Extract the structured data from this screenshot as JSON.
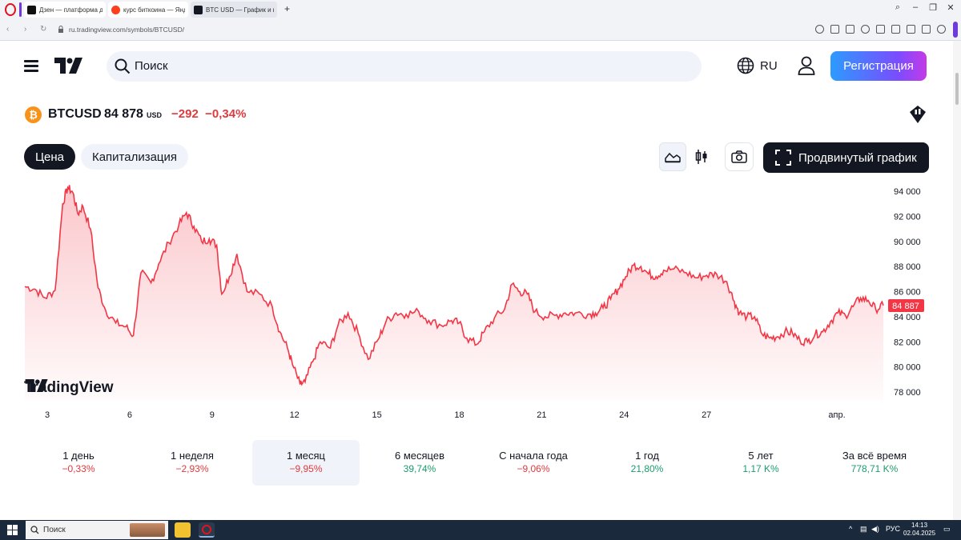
{
  "browser": {
    "tabs": [
      {
        "title": "Дзен — платформа для п"
      },
      {
        "title": "курс биткоина — Яндекс"
      },
      {
        "title": "BTC USD — График и кур"
      }
    ],
    "url": "ru.tradingview.com/symbols/BTCUSD/"
  },
  "header": {
    "search_placeholder": "Поиск",
    "lang": "RU",
    "register_label": "Регистрация"
  },
  "symbol": {
    "coin_glyph": "₿",
    "name": "BTCUSD",
    "price": "84 878",
    "currency": "USD",
    "change": "−292",
    "change_pct": "−0,34%"
  },
  "controls": {
    "tab_price": "Цена",
    "tab_cap": "Капитализация",
    "advanced_label": "Продвинутый график"
  },
  "chart_data": {
    "type": "area",
    "watermark": "TradingView",
    "y_ticks": [
      "94 000",
      "92 000",
      "90 000",
      "88 000",
      "86 000",
      "84 000",
      "82 000",
      "80 000",
      "78 000"
    ],
    "y_tick_values": [
      94000,
      92000,
      90000,
      88000,
      86000,
      84000,
      82000,
      80000,
      78000
    ],
    "x_ticks": [
      "3",
      "6",
      "9",
      "12",
      "15",
      "18",
      "21",
      "24",
      "27",
      "апр."
    ],
    "x_tick_positions": [
      3,
      6,
      9,
      12,
      15,
      18,
      21,
      24,
      27,
      32
    ],
    "last_price_label": "84 887",
    "last_price": 84887,
    "line_color": "#f23645",
    "x_unit": "day of March 2025 (32 = 1 апр.)",
    "series": [
      [
        1,
        86400
      ],
      [
        1.4,
        86200
      ],
      [
        1.8,
        85500
      ],
      [
        2.2,
        86100
      ],
      [
        2.5,
        93000
      ],
      [
        2.7,
        94300
      ],
      [
        2.9,
        93900
      ],
      [
        3.1,
        92200
      ],
      [
        3.3,
        92800
      ],
      [
        3.6,
        91000
      ],
      [
        3.9,
        86300
      ],
      [
        4.2,
        84500
      ],
      [
        4.6,
        83500
      ],
      [
        5,
        83200
      ],
      [
        5.3,
        82500
      ],
      [
        5.6,
        87500
      ],
      [
        6,
        86700
      ],
      [
        6.3,
        88200
      ],
      [
        6.7,
        89900
      ],
      [
        7.1,
        91300
      ],
      [
        7.4,
        92300
      ],
      [
        7.7,
        91200
      ],
      [
        8,
        90000
      ],
      [
        8.3,
        90200
      ],
      [
        8.6,
        89700
      ],
      [
        8.8,
        85800
      ],
      [
        9.1,
        87200
      ],
      [
        9.4,
        89000
      ],
      [
        9.8,
        86000
      ],
      [
        10.3,
        85800
      ],
      [
        10.8,
        84800
      ],
      [
        11.1,
        82800
      ],
      [
        11.4,
        81500
      ],
      [
        11.6,
        80200
      ],
      [
        11.9,
        78600
      ],
      [
        12.1,
        78800
      ],
      [
        12.4,
        80400
      ],
      [
        12.7,
        82000
      ],
      [
        13.1,
        81500
      ],
      [
        13.4,
        83300
      ],
      [
        13.8,
        84300
      ],
      [
        14.2,
        82700
      ],
      [
        14.6,
        80600
      ],
      [
        15,
        82200
      ],
      [
        15.3,
        83600
      ],
      [
        15.7,
        84300
      ],
      [
        16.1,
        84200
      ],
      [
        16.6,
        84400
      ],
      [
        17,
        83700
      ],
      [
        17.5,
        83300
      ],
      [
        17.9,
        83700
      ],
      [
        18.2,
        83500
      ],
      [
        18.5,
        82300
      ],
      [
        18.9,
        81800
      ],
      [
        19.2,
        82800
      ],
      [
        19.6,
        83900
      ],
      [
        20,
        84600
      ],
      [
        20.3,
        86600
      ],
      [
        20.6,
        86000
      ],
      [
        20.9,
        85800
      ],
      [
        21.2,
        84400
      ],
      [
        21.6,
        84000
      ],
      [
        22,
        84100
      ],
      [
        22.4,
        84300
      ],
      [
        22.8,
        84300
      ],
      [
        23.3,
        84200
      ],
      [
        23.6,
        84300
      ],
      [
        23.9,
        84700
      ],
      [
        24.2,
        85400
      ],
      [
        24.5,
        86200
      ],
      [
        24.8,
        87200
      ],
      [
        25.1,
        88100
      ],
      [
        25.4,
        88000
      ],
      [
        25.7,
        87400
      ],
      [
        26,
        87200
      ],
      [
        26.3,
        87700
      ],
      [
        26.7,
        87800
      ],
      [
        27.2,
        87500
      ],
      [
        27.6,
        87100
      ],
      [
        28,
        87300
      ],
      [
        28.4,
        87400
      ],
      [
        28.8,
        86800
      ],
      [
        29.1,
        85200
      ],
      [
        29.3,
        84300
      ],
      [
        29.6,
        84000
      ],
      [
        29.9,
        84000
      ],
      [
        30.2,
        82600
      ],
      [
        30.5,
        82300
      ],
      [
        30.8,
        82400
      ],
      [
        31.1,
        82800
      ],
      [
        31.4,
        82700
      ],
      [
        31.7,
        82100
      ],
      [
        32,
        82000
      ],
      [
        32.3,
        82600
      ],
      [
        32.6,
        82800
      ],
      [
        32.9,
        83600
      ],
      [
        33.2,
        84300
      ],
      [
        33.5,
        84100
      ],
      [
        33.8,
        84800
      ],
      [
        34.1,
        85500
      ],
      [
        34.4,
        85300
      ],
      [
        34.7,
        84600
      ],
      [
        35,
        84900
      ]
    ]
  },
  "periods": [
    {
      "label": "1 день",
      "value": "−0,33%",
      "dir": "neg"
    },
    {
      "label": "1 неделя",
      "value": "−2,93%",
      "dir": "neg"
    },
    {
      "label": "1 месяц",
      "value": "−9,95%",
      "dir": "neg",
      "selected": true
    },
    {
      "label": "6 месяцев",
      "value": "39,74%",
      "dir": "pos"
    },
    {
      "label": "С начала года",
      "value": "−9,06%",
      "dir": "neg"
    },
    {
      "label": "1 год",
      "value": "21,80%",
      "dir": "pos"
    },
    {
      "label": "5 лет",
      "value": "1,17 K%",
      "dir": "pos"
    },
    {
      "label": "За всё время",
      "value": "778,71 K%",
      "dir": "pos"
    }
  ],
  "taskbar": {
    "search_label": "Поиск",
    "lang": "РУС",
    "time": "14:13",
    "date": "02.04.2025"
  }
}
